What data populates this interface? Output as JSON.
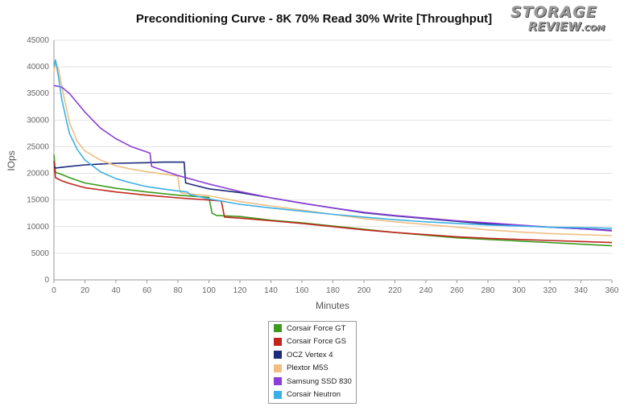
{
  "chart_data": {
    "type": "line",
    "title": "Preconditioning Curve - 8K 70% Read 30% Write [Throughput]",
    "xlabel": "Minutes",
    "ylabel": "IOps",
    "xlim": [
      0,
      360
    ],
    "ylim": [
      0,
      45000
    ],
    "xticks": [
      0,
      20,
      40,
      60,
      80,
      100,
      120,
      140,
      160,
      180,
      200,
      220,
      240,
      260,
      280,
      300,
      320,
      340,
      360
    ],
    "yticks": [
      0,
      5000,
      10000,
      15000,
      20000,
      25000,
      30000,
      35000,
      40000,
      45000
    ],
    "grid": "horizontal",
    "legend_position": "bottom-center",
    "series": [
      {
        "name": "Corsair Force GT",
        "color": "#3d9a1f",
        "points": [
          [
            0,
            23500
          ],
          [
            1,
            20200
          ],
          [
            5,
            19800
          ],
          [
            10,
            19200
          ],
          [
            20,
            18200
          ],
          [
            40,
            17200
          ],
          [
            60,
            16500
          ],
          [
            80,
            15900
          ],
          [
            100,
            15500
          ],
          [
            102,
            12500
          ],
          [
            105,
            12100
          ],
          [
            120,
            11900
          ],
          [
            140,
            11200
          ],
          [
            160,
            10700
          ],
          [
            180,
            10100
          ],
          [
            200,
            9500
          ],
          [
            220,
            8900
          ],
          [
            240,
            8400
          ],
          [
            260,
            7900
          ],
          [
            280,
            7600
          ],
          [
            300,
            7300
          ],
          [
            320,
            7000
          ],
          [
            340,
            6700
          ],
          [
            360,
            6400
          ]
        ]
      },
      {
        "name": "Corsair Force GS",
        "color": "#c0261d",
        "points": [
          [
            0,
            22300
          ],
          [
            1,
            19200
          ],
          [
            5,
            18600
          ],
          [
            10,
            18100
          ],
          [
            20,
            17300
          ],
          [
            40,
            16500
          ],
          [
            60,
            15900
          ],
          [
            80,
            15400
          ],
          [
            100,
            15000
          ],
          [
            108,
            14800
          ],
          [
            110,
            11800
          ],
          [
            120,
            11600
          ],
          [
            140,
            11100
          ],
          [
            160,
            10600
          ],
          [
            180,
            10000
          ],
          [
            200,
            9400
          ],
          [
            220,
            8900
          ],
          [
            240,
            8500
          ],
          [
            260,
            8100
          ],
          [
            280,
            7800
          ],
          [
            300,
            7600
          ],
          [
            320,
            7400
          ],
          [
            340,
            7200
          ],
          [
            360,
            7000
          ]
        ]
      },
      {
        "name": "OCZ Vertex 4",
        "color": "#1b2a7a",
        "points": [
          [
            0,
            21200
          ],
          [
            1,
            21000
          ],
          [
            10,
            21300
          ],
          [
            20,
            21600
          ],
          [
            40,
            21900
          ],
          [
            60,
            22000
          ],
          [
            70,
            22100
          ],
          [
            84,
            22100
          ],
          [
            85,
            18200
          ],
          [
            100,
            17100
          ],
          [
            120,
            16400
          ],
          [
            140,
            15400
          ],
          [
            160,
            14400
          ],
          [
            180,
            13500
          ],
          [
            200,
            12600
          ],
          [
            220,
            12000
          ],
          [
            240,
            11500
          ],
          [
            260,
            11000
          ],
          [
            280,
            10500
          ],
          [
            300,
            10200
          ],
          [
            320,
            9900
          ],
          [
            340,
            9600
          ],
          [
            360,
            9300
          ]
        ]
      },
      {
        "name": "Plextor M5S",
        "color": "#f0be82",
        "points": [
          [
            0,
            39000
          ],
          [
            1,
            41000
          ],
          [
            3,
            39500
          ],
          [
            6,
            35000
          ],
          [
            10,
            29500
          ],
          [
            15,
            26000
          ],
          [
            20,
            24200
          ],
          [
            30,
            22500
          ],
          [
            40,
            21400
          ],
          [
            50,
            20800
          ],
          [
            60,
            20300
          ],
          [
            70,
            19900
          ],
          [
            80,
            19500
          ],
          [
            81,
            17000
          ],
          [
            82,
            16300
          ],
          [
            90,
            16100
          ],
          [
            100,
            15800
          ],
          [
            120,
            14700
          ],
          [
            140,
            13900
          ],
          [
            160,
            13100
          ],
          [
            180,
            12300
          ],
          [
            200,
            11500
          ],
          [
            220,
            10900
          ],
          [
            240,
            10400
          ],
          [
            260,
            9900
          ],
          [
            280,
            9400
          ],
          [
            300,
            9000
          ],
          [
            320,
            8700
          ],
          [
            340,
            8500
          ],
          [
            360,
            8300
          ]
        ]
      },
      {
        "name": "Samsung SSD 830",
        "color": "#8b3fd6",
        "points": [
          [
            0,
            36500
          ],
          [
            5,
            36200
          ],
          [
            10,
            35000
          ],
          [
            20,
            31500
          ],
          [
            30,
            28500
          ],
          [
            40,
            26500
          ],
          [
            50,
            25000
          ],
          [
            62,
            23800
          ],
          [
            63,
            21300
          ],
          [
            70,
            20600
          ],
          [
            80,
            19600
          ],
          [
            100,
            18000
          ],
          [
            120,
            16600
          ],
          [
            140,
            15400
          ],
          [
            160,
            14400
          ],
          [
            180,
            13500
          ],
          [
            200,
            12700
          ],
          [
            220,
            12100
          ],
          [
            240,
            11600
          ],
          [
            260,
            11100
          ],
          [
            280,
            10700
          ],
          [
            300,
            10300
          ],
          [
            320,
            9900
          ],
          [
            340,
            9600
          ],
          [
            360,
            9200
          ]
        ]
      },
      {
        "name": "Corsair Neutron",
        "color": "#3cb0e6",
        "points": [
          [
            0,
            40000
          ],
          [
            1,
            41300
          ],
          [
            3,
            38000
          ],
          [
            5,
            34000
          ],
          [
            8,
            30000
          ],
          [
            10,
            27500
          ],
          [
            15,
            24500
          ],
          [
            20,
            22500
          ],
          [
            30,
            20300
          ],
          [
            40,
            19000
          ],
          [
            50,
            18200
          ],
          [
            60,
            17500
          ],
          [
            70,
            17100
          ],
          [
            80,
            16700
          ],
          [
            86,
            16500
          ],
          [
            88,
            16000
          ],
          [
            100,
            15200
          ],
          [
            120,
            14200
          ],
          [
            140,
            13500
          ],
          [
            160,
            12900
          ],
          [
            180,
            12300
          ],
          [
            200,
            11800
          ],
          [
            220,
            11300
          ],
          [
            240,
            10900
          ],
          [
            260,
            10600
          ],
          [
            280,
            10300
          ],
          [
            300,
            10100
          ],
          [
            320,
            9900
          ],
          [
            340,
            9800
          ],
          [
            360,
            9700
          ]
        ]
      }
    ]
  },
  "watermark": {
    "line1": "STORAGE",
    "line2": "REVIEW",
    "suffix": ".COM"
  }
}
